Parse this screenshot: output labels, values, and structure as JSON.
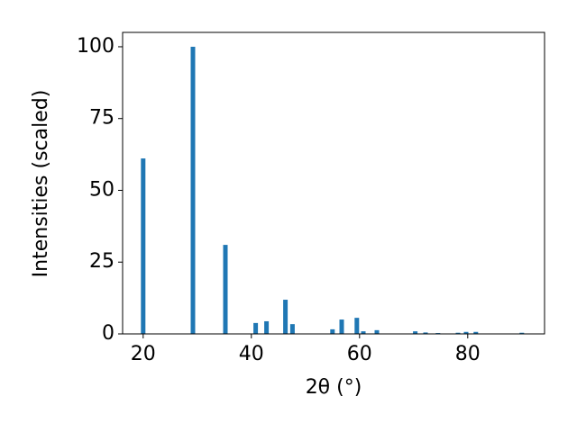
{
  "chart_data": {
    "type": "bar",
    "x_label": "2θ (°)",
    "y_label": "Intensities (scaled)",
    "x": [
      20.0,
      29.2,
      35.2,
      40.8,
      42.8,
      46.3,
      47.6,
      55.0,
      56.7,
      59.5,
      60.7,
      63.2,
      70.3,
      72.2,
      74.5,
      78.2,
      79.7,
      81.5,
      90.0
    ],
    "values": [
      61.1,
      100,
      31,
      3.8,
      4.4,
      11.9,
      3.4,
      1.6,
      5.0,
      5.6,
      0.9,
      1.3,
      0.9,
      0.5,
      0.3,
      0.4,
      0.7,
      0.7,
      0.4
    ],
    "color": "#1f77b4",
    "xlim": [
      16.2,
      94.2
    ],
    "ylim": [
      0,
      105
    ],
    "xticks": [
      20,
      40,
      60,
      80
    ],
    "yticks": [
      0,
      25,
      50,
      75,
      100
    ]
  }
}
